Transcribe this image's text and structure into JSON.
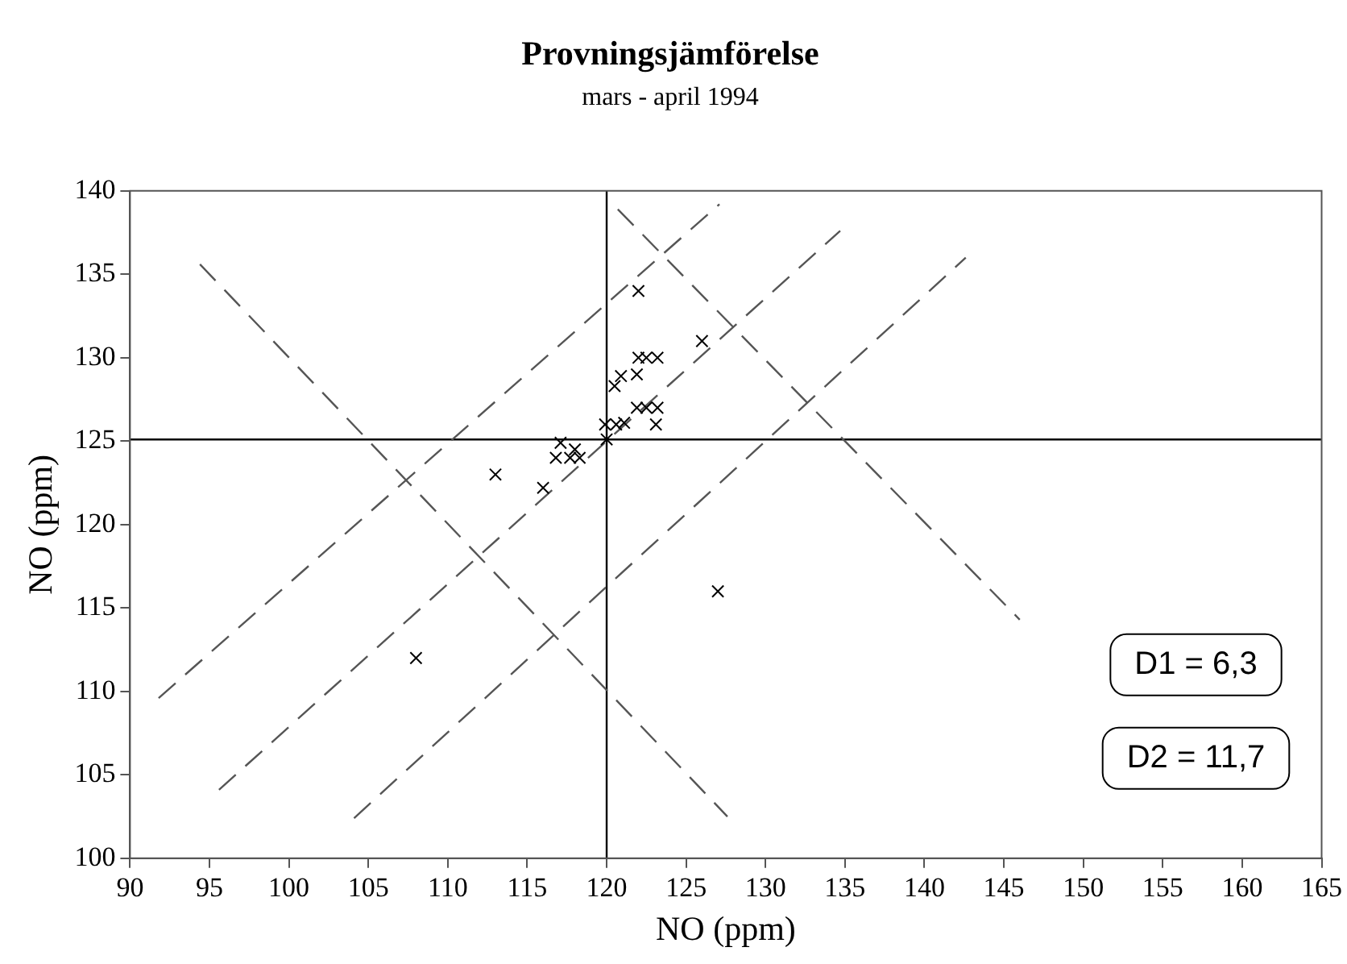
{
  "chart_data": {
    "type": "scatter",
    "title": "Provningsjämförelse",
    "subtitle": "mars - april 1994",
    "xlabel": "NO (ppm)",
    "ylabel": "NO (ppm)",
    "xlim": [
      90,
      165
    ],
    "xticks": [
      90,
      95,
      100,
      105,
      110,
      115,
      120,
      125,
      130,
      135,
      140,
      145,
      150,
      155,
      160,
      165
    ],
    "ylim": [
      100,
      140
    ],
    "yticks": [
      100,
      105,
      110,
      115,
      120,
      125,
      130,
      135,
      140
    ],
    "grid": false,
    "legend": false,
    "marker": "cross",
    "series": [
      {
        "color": "#000000",
        "x": [
          108,
          113,
          116,
          117.1,
          116.8,
          117.7,
          118.3,
          118,
          120,
          119.9,
          120.6,
          121.1,
          120.5,
          120.9,
          121.9,
          122,
          122.5,
          123.2,
          122,
          126,
          121.9,
          122.5,
          123.2,
          123.1,
          127
        ],
        "values": [
          112,
          123,
          122.2,
          124.9,
          124,
          124,
          124,
          124.5,
          125.1,
          126,
          126,
          126.1,
          128.3,
          128.9,
          129,
          130,
          130,
          130,
          134,
          131,
          127,
          127,
          127,
          126,
          116
        ]
      },
      {
        "type": "line",
        "color": "#555555",
        "line_style": "dashed",
        "marker": "none",
        "x": [
          91.8,
          127.1
        ],
        "values": [
          109.6,
          139.2
        ]
      },
      {
        "type": "line",
        "color": "#555555",
        "line_style": "dashed",
        "marker": "none",
        "x": [
          95.6,
          134.7
        ],
        "values": [
          104.1,
          137.6
        ]
      },
      {
        "type": "line",
        "color": "#555555",
        "line_style": "dashed",
        "marker": "none",
        "x": [
          104.1,
          142.6
        ],
        "values": [
          102.4,
          136
        ]
      },
      {
        "type": "line",
        "color": "#555555",
        "line_style": "dashed",
        "marker": "none",
        "x": [
          94.4,
          127.6
        ],
        "values": [
          135.6,
          102.5
        ]
      },
      {
        "type": "line",
        "color": "#555555",
        "line_style": "dashed",
        "marker": "none",
        "x": [
          120.7,
          146
        ],
        "values": [
          138.9,
          114.3
        ]
      }
    ],
    "ref_lines": [
      {
        "axis": "x",
        "value": 120,
        "color": "#000000"
      },
      {
        "axis": "y",
        "value": 125.1,
        "color": "#000000"
      }
    ],
    "annotations": [
      "D1 = 6,3",
      "D2 = 11,7"
    ]
  }
}
